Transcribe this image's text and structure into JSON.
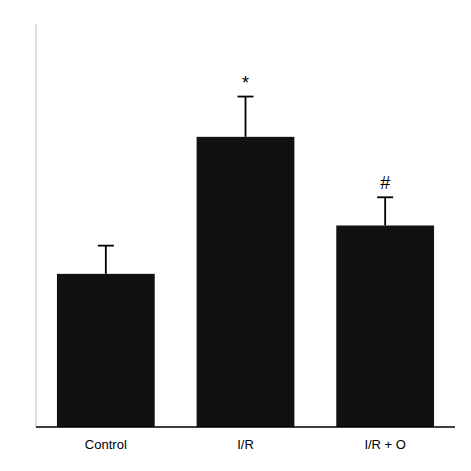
{
  "chart_data": {
    "type": "bar",
    "categories": [
      "Control",
      "I/R",
      "I/R + O"
    ],
    "values": [
      0.38,
      0.72,
      0.5
    ],
    "errors": [
      0.07,
      0.1,
      0.07
    ],
    "color": "#111111",
    "ylim": [
      0,
      1.0
    ],
    "grid": false,
    "tick_labels": "x",
    "annotations": [
      {
        "text": "*",
        "category": "I/R"
      },
      {
        "text": "#",
        "category": "I/R + O"
      }
    ]
  }
}
